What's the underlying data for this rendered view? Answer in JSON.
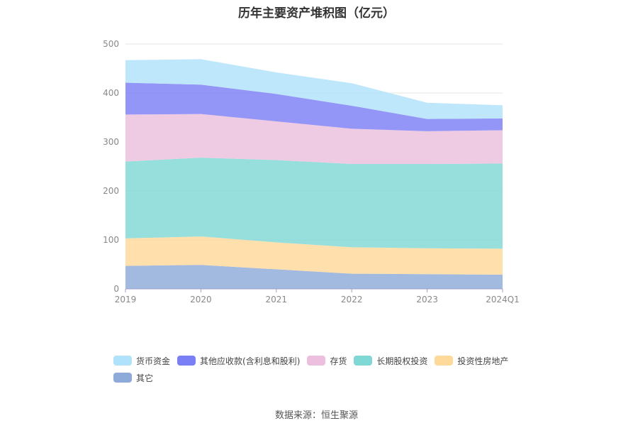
{
  "chart_data": {
    "type": "area",
    "stacked": true,
    "title": "历年主要资产堆积图（亿元）",
    "categories": [
      "2019",
      "2020",
      "2021",
      "2022",
      "2023",
      "2024Q1"
    ],
    "ylim": [
      0,
      500
    ],
    "yticks": [
      "0",
      "100",
      "200",
      "300",
      "400",
      "500"
    ],
    "series": [
      {
        "name": "其它",
        "color": "#8eaad9",
        "values": [
          47,
          49,
          40,
          31,
          30,
          29
        ]
      },
      {
        "name": "投资性房地产",
        "color": "#ffd99a",
        "values": [
          56,
          58,
          55,
          54,
          53,
          53
        ]
      },
      {
        "name": "长期股权投资",
        "color": "#80d8d6",
        "values": [
          157,
          161,
          168,
          170,
          172,
          174
        ]
      },
      {
        "name": "存货",
        "color": "#ebbfdd",
        "values": [
          96,
          89,
          79,
          72,
          67,
          68
        ]
      },
      {
        "name": "其他应收款(含利息和股利)",
        "color": "#7b7ff5",
        "values": [
          65,
          60,
          56,
          47,
          25,
          24
        ]
      },
      {
        "name": "货币资金",
        "color": "#b0e2fb",
        "values": [
          46,
          52,
          44,
          46,
          33,
          27
        ]
      }
    ],
    "legend_order": [
      "货币资金",
      "其他应收款(含利息和股利)",
      "存货",
      "长期股权投资",
      "投资性房地产",
      "其它"
    ]
  },
  "source": "数据来源：恒生聚源"
}
